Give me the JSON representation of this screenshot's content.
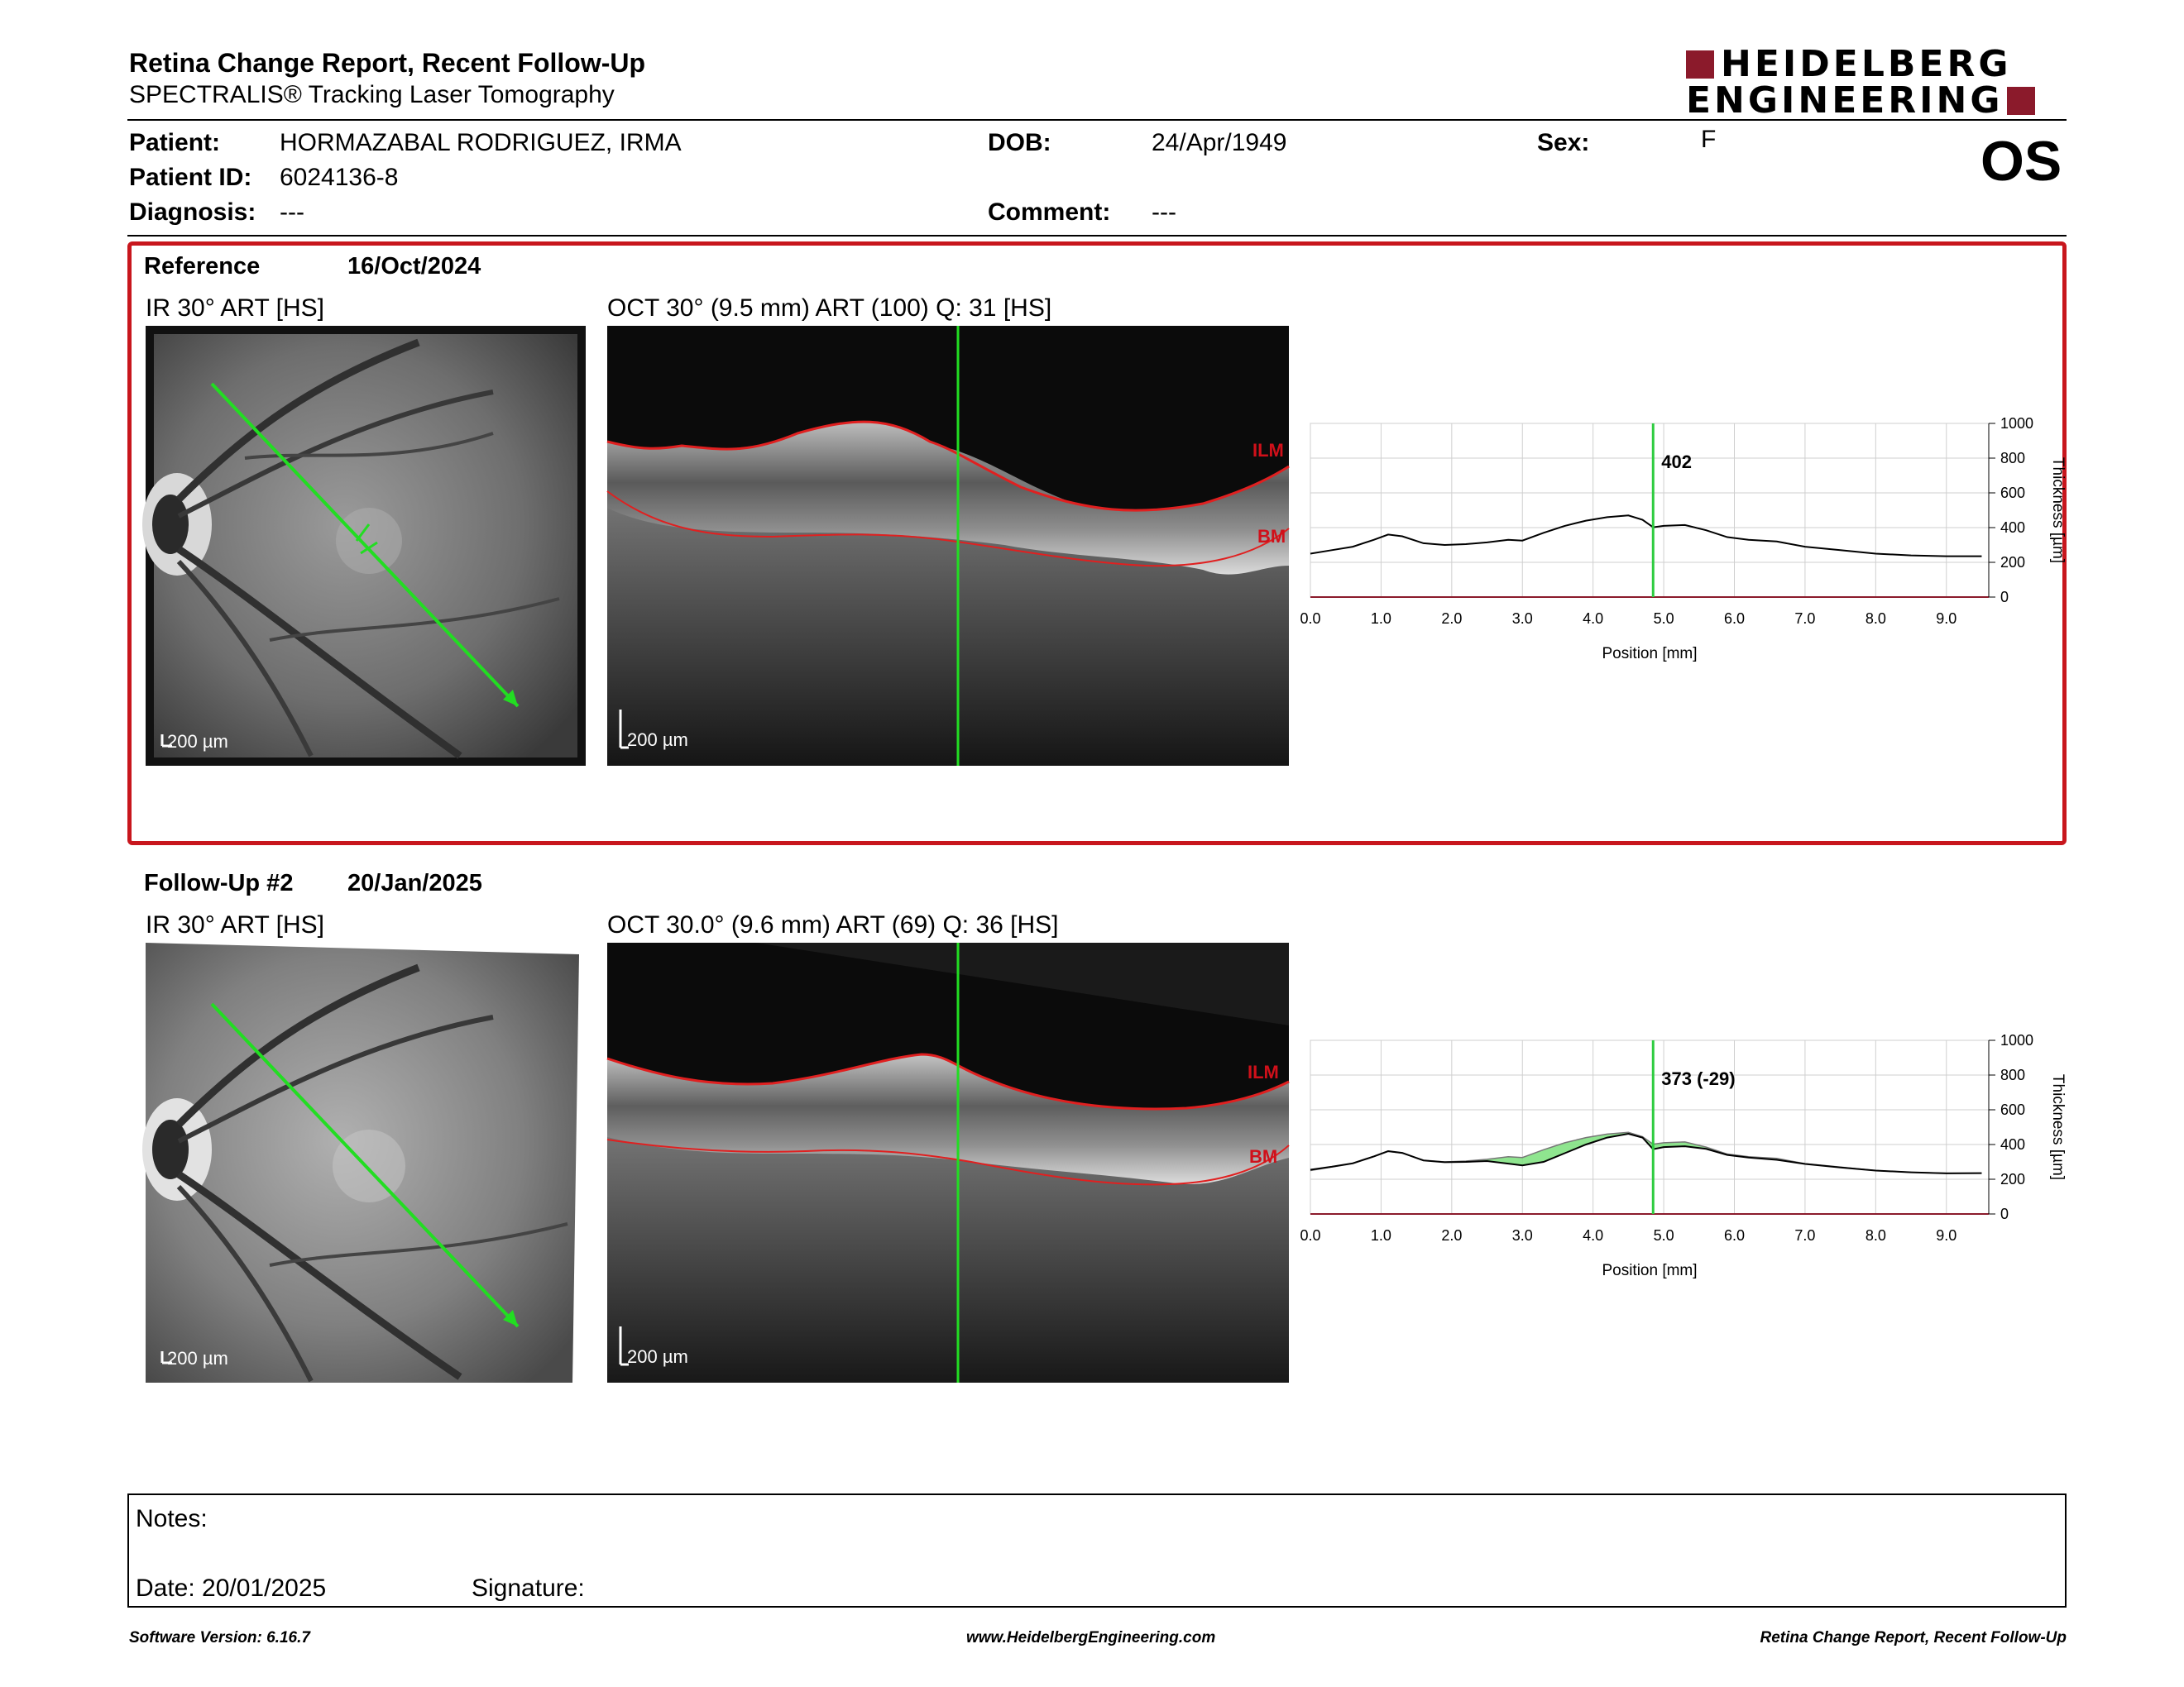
{
  "header": {
    "title": "Retina Change Report, Recent Follow-Up",
    "subtitle": "SPECTRALIS® Tracking Laser Tomography",
    "logo_line1": "HEIDELBERG",
    "logo_line2": "ENGINEERING",
    "eye": "OS"
  },
  "patient": {
    "patient_label": "Patient:",
    "patient_name": "HORMAZABAL RODRIGUEZ, IRMA",
    "id_label": "Patient ID:",
    "id_value": "6024136-8",
    "diagnosis_label": "Diagnosis:",
    "diagnosis_value": "---",
    "dob_label": "DOB:",
    "dob_value": "24/Apr/1949",
    "comment_label": "Comment:",
    "comment_value": "---",
    "sex_label": "Sex:",
    "sex_value": "F"
  },
  "reference": {
    "label": "Reference",
    "date": "16/Oct/2024",
    "ir_title": "IR 30° ART [HS]",
    "oct_title": "OCT 30° (9.5 mm) ART (100) Q: 31 [HS]",
    "scale_ir": "200 µm",
    "scale_oct": "200 µm",
    "ilm": "ILM",
    "bm": "BM"
  },
  "followup": {
    "label": "Follow-Up #2",
    "date": "20/Jan/2025",
    "ir_title": "IR 30° ART [HS]",
    "oct_title": "OCT 30.0° (9.6 mm) ART (69) Q: 36 [HS]",
    "scale_ir": "200 µm",
    "scale_oct": "200 µm",
    "ilm": "ILM",
    "bm": "BM"
  },
  "chart_data": [
    {
      "type": "line",
      "xlabel": "Position [mm]",
      "ylabel": "Thickness [µm]",
      "xlim": [
        0,
        9.6
      ],
      "ylim": [
        0,
        1000
      ],
      "xticks": [
        "0.0",
        "1.0",
        "2.0",
        "3.0",
        "4.0",
        "5.0",
        "6.0",
        "7.0",
        "8.0",
        "9.0"
      ],
      "yticks": [
        "0",
        "200",
        "400",
        "600",
        "800",
        "1000"
      ],
      "marker_x": 4.85,
      "marker_label": "402",
      "series": [
        {
          "x": [
            0,
            0.3,
            0.6,
            0.9,
            1.1,
            1.3,
            1.6,
            1.9,
            2.2,
            2.5,
            2.8,
            3.0,
            3.3,
            3.6,
            3.9,
            4.2,
            4.5,
            4.7,
            4.85,
            5.0,
            5.3,
            5.6,
            5.9,
            6.2,
            6.6,
            7.0,
            7.5,
            8.0,
            8.5,
            9.0,
            9.5
          ],
          "values": [
            250,
            270,
            290,
            330,
            360,
            350,
            310,
            300,
            305,
            315,
            330,
            325,
            370,
            410,
            440,
            460,
            470,
            445,
            402,
            410,
            415,
            385,
            345,
            330,
            320,
            290,
            270,
            250,
            240,
            235,
            235
          ]
        }
      ],
      "colors": {
        "line": "#000000",
        "marker": "#2ecc40"
      }
    },
    {
      "type": "area",
      "xlabel": "Position [mm]",
      "ylabel": "Thickness [µm]",
      "xlim": [
        0,
        9.6
      ],
      "ylim": [
        0,
        1000
      ],
      "xticks": [
        "0.0",
        "1.0",
        "2.0",
        "3.0",
        "4.0",
        "5.0",
        "6.0",
        "7.0",
        "8.0",
        "9.0"
      ],
      "yticks": [
        "0",
        "200",
        "400",
        "600",
        "800",
        "1000"
      ],
      "marker_x": 4.85,
      "marker_label": "373 (-29)",
      "series": [
        {
          "x": [
            0,
            0.3,
            0.6,
            0.9,
            1.1,
            1.3,
            1.6,
            1.9,
            2.2,
            2.5,
            2.8,
            3.0,
            3.3,
            3.6,
            3.9,
            4.2,
            4.5,
            4.7,
            4.85,
            5.0,
            5.3,
            5.6,
            5.9,
            6.2,
            6.6,
            7.0,
            7.5,
            8.0,
            8.5,
            9.0,
            9.5
          ],
          "values": [
            250,
            270,
            290,
            330,
            360,
            350,
            310,
            300,
            305,
            315,
            330,
            325,
            370,
            410,
            440,
            460,
            470,
            445,
            402,
            410,
            415,
            385,
            345,
            330,
            320,
            290,
            270,
            250,
            240,
            235,
            235
          ]
        },
        {
          "x": [
            0,
            0.3,
            0.6,
            0.9,
            1.1,
            1.3,
            1.6,
            1.9,
            2.2,
            2.5,
            2.8,
            3.0,
            3.3,
            3.6,
            3.9,
            4.2,
            4.5,
            4.7,
            4.85,
            5.0,
            5.3,
            5.6,
            5.9,
            6.2,
            6.6,
            7.0,
            7.5,
            8.0,
            8.5,
            9.0,
            9.5
          ],
          "values": [
            255,
            272,
            292,
            332,
            362,
            352,
            308,
            298,
            300,
            305,
            290,
            280,
            300,
            350,
            400,
            440,
            462,
            440,
            373,
            385,
            390,
            375,
            340,
            325,
            312,
            288,
            268,
            250,
            240,
            234,
            235
          ]
        }
      ],
      "colors": {
        "line": "#000000",
        "fill": "#7be07b",
        "marker": "#2ecc40"
      }
    }
  ],
  "notes": {
    "notes_label": "Notes:",
    "date_label": "Date: 20/01/2025",
    "signature_label": "Signature:"
  },
  "footer": {
    "left": "Software Version: 6.16.7",
    "center": "www.HeidelbergEngineering.com",
    "right": "Retina Change Report, Recent Follow-Up"
  }
}
